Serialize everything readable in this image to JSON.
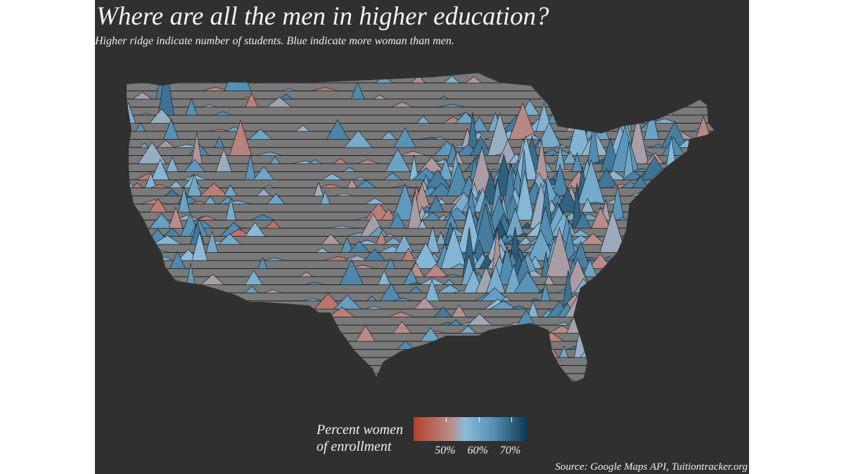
{
  "chart_data": {
    "type": "ridgeline-map",
    "title": "Where are all the men in higher education?",
    "subtitle": "Higher ridge indicate number of students. Blue indicate more woman than men.",
    "legend": {
      "title_line1": "Percent women",
      "title_line2": "of enrollment",
      "ticks": [
        "50%",
        "60%",
        "70%"
      ],
      "tick_values": [
        50,
        60,
        70
      ],
      "range": [
        40,
        75
      ],
      "colors": {
        "low": "#b5412c",
        "mid": "#8cbbd9",
        "high": "#0f3750"
      }
    },
    "source": "Source: Google Maps API, Tuitiontracker.org"
  }
}
